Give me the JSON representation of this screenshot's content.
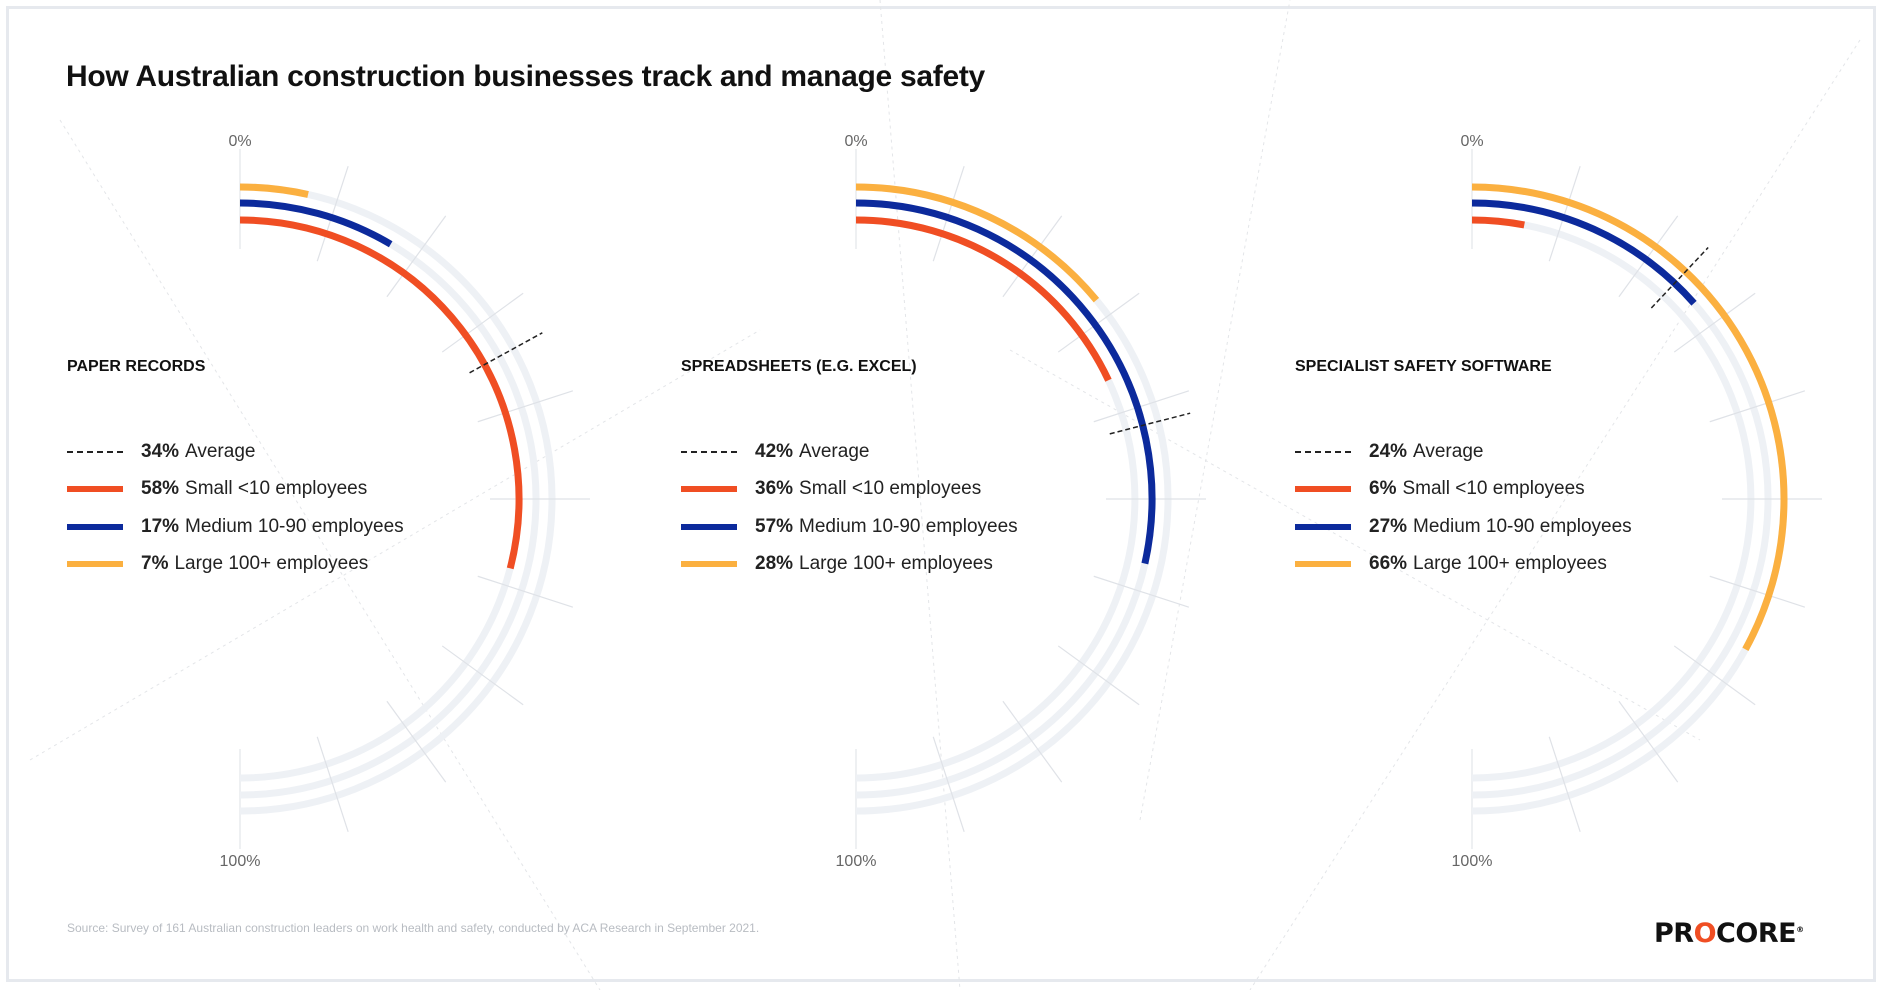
{
  "title": "How Australian construction businesses track and manage safety",
  "source": "Source: Survey of 161 Australian construction leaders on work health and safety, conducted by ACA Research in September 2021.",
  "logo": "PROCORE",
  "colors": {
    "small": "#f04e23",
    "medium": "#0c2a9c",
    "large": "#fbb040",
    "average": "#222222",
    "track": "#eef1f5"
  },
  "chart_data": [
    {
      "type": "radial-bar",
      "title": "PAPER RECORDS",
      "start_label": "0%",
      "end_label": "100%",
      "range": [
        0,
        100
      ],
      "average": {
        "value": 34,
        "label": "Average"
      },
      "series": [
        {
          "name": "Small <10 employees",
          "value": 58
        },
        {
          "name": "Medium 10-90 employees",
          "value": 17
        },
        {
          "name": "Large 100+ employees",
          "value": 7
        }
      ]
    },
    {
      "type": "radial-bar",
      "title": "SPREADSHEETS (E.G. EXCEL)",
      "start_label": "0%",
      "end_label": "100%",
      "range": [
        0,
        100
      ],
      "average": {
        "value": 42,
        "label": "Average"
      },
      "series": [
        {
          "name": "Small <10 employees",
          "value": 36
        },
        {
          "name": "Medium 10-90 employees",
          "value": 57
        },
        {
          "name": "Large 100+ employees",
          "value": 28
        }
      ]
    },
    {
      "type": "radial-bar",
      "title": "SPECIALIST SAFETY SOFTWARE",
      "start_label": "0%",
      "end_label": "100%",
      "range": [
        0,
        100
      ],
      "average": {
        "value": 24,
        "label": "Average"
      },
      "series": [
        {
          "name": "Small <10 employees",
          "value": 6
        },
        {
          "name": "Medium 10-90 employees",
          "value": 27
        },
        {
          "name": "Large 100+ employees",
          "value": 66
        }
      ]
    }
  ]
}
